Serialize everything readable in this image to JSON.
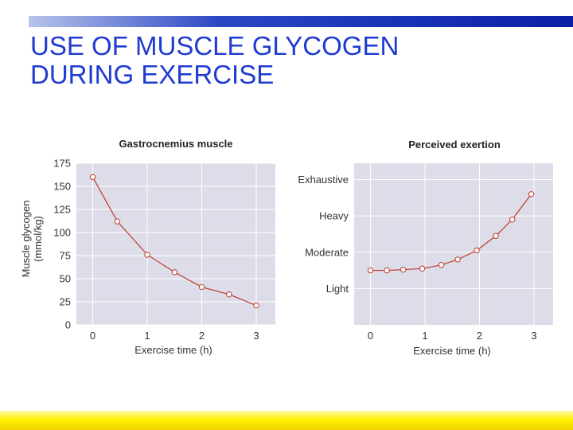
{
  "slide": {
    "title_line1": "USE OF MUSCLE GLYCOGEN",
    "title_line2": "DURING EXERCISE",
    "title_color": "#1f3bd1",
    "accent_bar_color": "#0a1fa8",
    "footer_bar_color": "#fff200"
  },
  "chart_data": [
    {
      "type": "line",
      "title": "Gastrocnemius muscle",
      "xlabel": "Exercise time (h)",
      "ylabel_line1": "Muscle glycogen",
      "ylabel_line2": "(mmol/kg)",
      "xlim": [
        -0.3,
        3.35
      ],
      "ylim": [
        0,
        175
      ],
      "xticks": [
        0,
        1,
        2,
        3
      ],
      "yticks": [
        0,
        25,
        50,
        75,
        100,
        125,
        150,
        175
      ],
      "grid": true,
      "series": [
        {
          "x": [
            0,
            0.45,
            1,
            1.5,
            2,
            2.5,
            3
          ],
          "y": [
            160,
            112,
            76,
            57,
            41,
            33,
            21
          ],
          "color": "#c0392b"
        }
      ]
    },
    {
      "type": "line",
      "title": "Perceived exertion",
      "xlabel": "Exercise time (h)",
      "xlim": [
        -0.3,
        3.35
      ],
      "ylim": [
        0,
        4.45
      ],
      "xticks": [
        0,
        1,
        2,
        3
      ],
      "ytick_values": [
        1,
        2,
        3,
        4
      ],
      "ytick_labels": [
        "Light",
        "Moderate",
        "Heavy",
        "Exhaustive"
      ],
      "grid": true,
      "series": [
        {
          "x": [
            0,
            0.3,
            0.6,
            0.95,
            1.3,
            1.6,
            1.95,
            2.3,
            2.6,
            2.95
          ],
          "y": [
            1.5,
            1.5,
            1.52,
            1.55,
            1.65,
            1.8,
            2.05,
            2.45,
            2.9,
            3.6
          ],
          "color": "#c0392b"
        }
      ]
    }
  ]
}
